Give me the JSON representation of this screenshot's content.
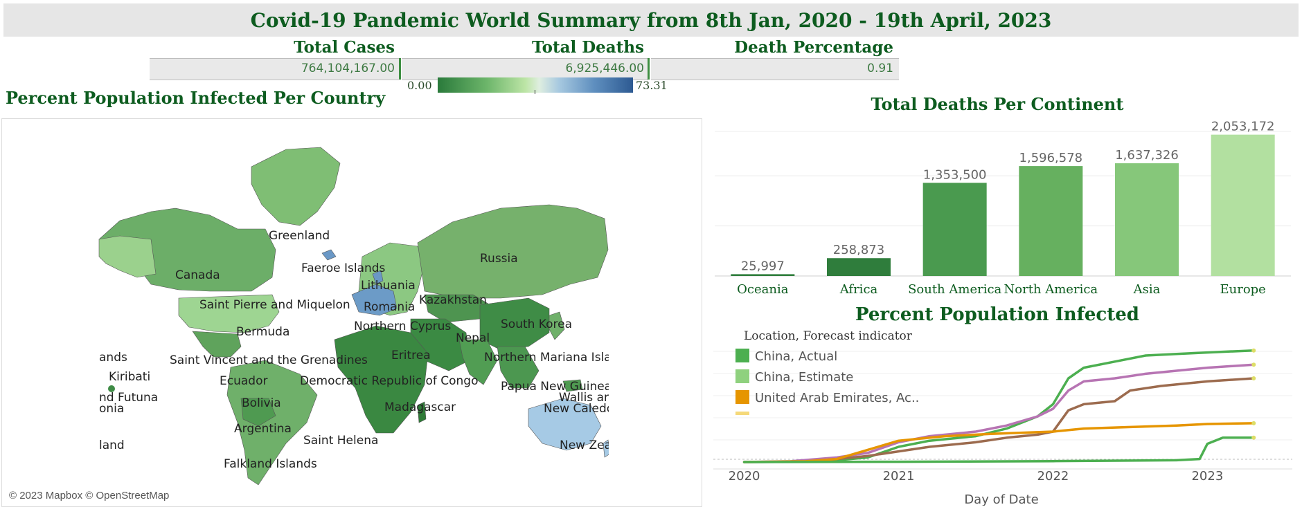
{
  "header": {
    "title": "Covid-19 Pandemic World Summary from 8th Jan, 2020 - 19th April, 2023"
  },
  "kpis": [
    {
      "label": "Total Cases",
      "value": "764,104,167.00"
    },
    {
      "label": "Total Deaths",
      "value": "6,925,446.00"
    },
    {
      "label": "Death Percentage",
      "value": "0.91"
    }
  ],
  "map": {
    "title": "Percent Population Infected Per Country",
    "legend_min": "0.00",
    "legend_max": "73.31",
    "copyright": "© 2023 Mapbox © OpenStreetMap",
    "labels": [
      "Greenland",
      "Canada",
      "Faeroe Islands",
      "Lithuania",
      "Russia",
      "Saint Pierre and Miquelon",
      "Romania",
      "Kazakhstan",
      "Bermuda",
      "Northern Cyprus",
      "South Korea",
      "Nepal",
      "ands",
      "Kiribati",
      "Saint Vincent and the Grenadines",
      "Eritrea",
      "Northern Mariana Isla",
      "Ecuador",
      "Democratic Republic of Congo",
      "Papua New Guinea",
      "nd Futuna",
      "Wallis ar",
      "onia",
      "Bolivia",
      "Madagascar",
      "New Caledo",
      "Argentina",
      "Saint Helena",
      "New Zea",
      "land",
      "Falkland Islands"
    ],
    "colors": {
      "low": "#2a7a3b",
      "mid": "#bde5a6",
      "high": "#2d5a92"
    }
  },
  "chart_data": [
    {
      "type": "bar",
      "title": "Total Deaths Per Continent",
      "categories": [
        "Oceania",
        "Africa",
        "South America",
        "North America",
        "Asia",
        "Europe"
      ],
      "values": [
        25997,
        258873,
        1353500,
        1596578,
        1637326,
        2053172
      ],
      "value_labels": [
        "25,997",
        "258,873",
        "1,353,500",
        "1,596,578",
        "1,637,326",
        "2,053,172"
      ],
      "colors": [
        "#2f7d3c",
        "#2f7d3c",
        "#4a9a4f",
        "#66b05f",
        "#86c77a",
        "#b2e0a0"
      ],
      "ylim": [
        0,
        2100000
      ],
      "grid": true
    },
    {
      "type": "line",
      "title": "Percent Population Infected",
      "xlabel": "Day of Date",
      "x_ticks": [
        "2020",
        "2021",
        "2022",
        "2023"
      ],
      "legend_title": "Location, Forecast indicator",
      "legend_entries": [
        "China, Actual",
        "China, Estimate",
        "United Arab Emirates, Ac.."
      ],
      "legend_colors": [
        "#4caf50",
        "#8fd17e",
        "#e69500"
      ],
      "ylim": [
        0,
        75
      ],
      "series": [
        {
          "color": "#4caf50",
          "points": [
            [
              2020.0,
              0
            ],
            [
              2020.3,
              0.2
            ],
            [
              2020.6,
              1.2
            ],
            [
              2020.8,
              3
            ],
            [
              2021.0,
              10
            ],
            [
              2021.2,
              14
            ],
            [
              2021.5,
              17
            ],
            [
              2021.7,
              22
            ],
            [
              2021.9,
              30
            ],
            [
              2022.0,
              38
            ],
            [
              2022.1,
              55
            ],
            [
              2022.2,
              62
            ],
            [
              2022.4,
              66
            ],
            [
              2022.6,
              70
            ],
            [
              2022.8,
              71
            ],
            [
              2023.0,
              72
            ],
            [
              2023.3,
              73.31
            ]
          ]
        },
        {
          "color": "#b774b3",
          "points": [
            [
              2020.0,
              0
            ],
            [
              2020.3,
              0.5
            ],
            [
              2020.6,
              3
            ],
            [
              2020.8,
              6
            ],
            [
              2021.0,
              13
            ],
            [
              2021.2,
              17
            ],
            [
              2021.5,
              20
            ],
            [
              2021.7,
              24
            ],
            [
              2021.9,
              30
            ],
            [
              2022.0,
              35
            ],
            [
              2022.1,
              47
            ],
            [
              2022.2,
              53
            ],
            [
              2022.4,
              55
            ],
            [
              2022.6,
              58
            ],
            [
              2022.8,
              60
            ],
            [
              2023.0,
              62
            ],
            [
              2023.3,
              64
            ]
          ]
        },
        {
          "color": "#9c6b4e",
          "points": [
            [
              2020.0,
              0
            ],
            [
              2020.4,
              0.3
            ],
            [
              2020.6,
              2
            ],
            [
              2020.8,
              4
            ],
            [
              2021.0,
              7
            ],
            [
              2021.2,
              10
            ],
            [
              2021.5,
              13
            ],
            [
              2021.7,
              16
            ],
            [
              2021.9,
              18
            ],
            [
              2022.0,
              20
            ],
            [
              2022.1,
              34
            ],
            [
              2022.2,
              38
            ],
            [
              2022.4,
              40
            ],
            [
              2022.5,
              47
            ],
            [
              2022.7,
              50
            ],
            [
              2023.0,
              53
            ],
            [
              2023.3,
              55
            ]
          ]
        },
        {
          "color": "#e69500",
          "points": [
            [
              2020.0,
              0
            ],
            [
              2020.4,
              0.5
            ],
            [
              2020.6,
              2
            ],
            [
              2020.8,
              8
            ],
            [
              2021.0,
              14
            ],
            [
              2021.3,
              17
            ],
            [
              2021.6,
              18.5
            ],
            [
              2022.0,
              20
            ],
            [
              2022.2,
              22
            ],
            [
              2022.5,
              23
            ],
            [
              2022.8,
              24
            ],
            [
              2023.0,
              25
            ],
            [
              2023.3,
              25.5
            ]
          ]
        },
        {
          "color": "#4caf50",
          "points": [
            [
              2020.0,
              0
            ],
            [
              2021.0,
              0.2
            ],
            [
              2022.0,
              0.6
            ],
            [
              2022.8,
              1.2
            ],
            [
              2022.95,
              2
            ],
            [
              2023.0,
              12
            ],
            [
              2023.1,
              16
            ],
            [
              2023.3,
              16
            ]
          ]
        }
      ]
    }
  ]
}
